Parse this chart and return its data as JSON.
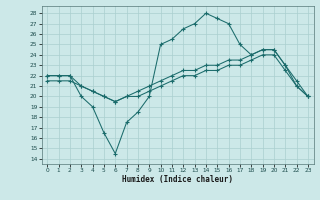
{
  "xlabel": "Humidex (Indice chaleur)",
  "background_color": "#cce8e8",
  "grid_color": "#aacfcf",
  "line_color": "#1a6b6b",
  "xlim": [
    -0.5,
    23.5
  ],
  "ylim": [
    13.5,
    28.7
  ],
  "yticks": [
    14,
    15,
    16,
    17,
    18,
    19,
    20,
    21,
    22,
    23,
    24,
    25,
    26,
    27,
    28
  ],
  "xticks": [
    0,
    1,
    2,
    3,
    4,
    5,
    6,
    7,
    8,
    9,
    10,
    11,
    12,
    13,
    14,
    15,
    16,
    17,
    18,
    19,
    20,
    21,
    22,
    23
  ],
  "line1_x": [
    0,
    1,
    2,
    3,
    4,
    5,
    6,
    7,
    8,
    9,
    10,
    11,
    12,
    13,
    14,
    15,
    16,
    17,
    18,
    19,
    20,
    21,
    22,
    23
  ],
  "line1_y": [
    22,
    22,
    22,
    20,
    19,
    16.5,
    14.5,
    17.5,
    18.5,
    20,
    25,
    25.5,
    26.5,
    27,
    28,
    27.5,
    27,
    25,
    24,
    24.5,
    24.5,
    23,
    21,
    20
  ],
  "line2_x": [
    0,
    1,
    2,
    3,
    4,
    5,
    6,
    7,
    8,
    9,
    10,
    11,
    12,
    13,
    14,
    15,
    16,
    17,
    18,
    19,
    20,
    21,
    22,
    23
  ],
  "line2_y": [
    22,
    22,
    22,
    21,
    20.5,
    20,
    19.5,
    20,
    20.5,
    21,
    21.5,
    22,
    22.5,
    22.5,
    23,
    23,
    23.5,
    23.5,
    24,
    24.5,
    24.5,
    23,
    21.5,
    20
  ],
  "line3_x": [
    0,
    1,
    2,
    3,
    4,
    5,
    6,
    7,
    8,
    9,
    10,
    11,
    12,
    13,
    14,
    15,
    16,
    17,
    18,
    19,
    20,
    21,
    22,
    23
  ],
  "line3_y": [
    21.5,
    21.5,
    21.5,
    21,
    20.5,
    20,
    19.5,
    20,
    20,
    20.5,
    21,
    21.5,
    22,
    22,
    22.5,
    22.5,
    23,
    23,
    23.5,
    24,
    24,
    22.5,
    21,
    20
  ]
}
